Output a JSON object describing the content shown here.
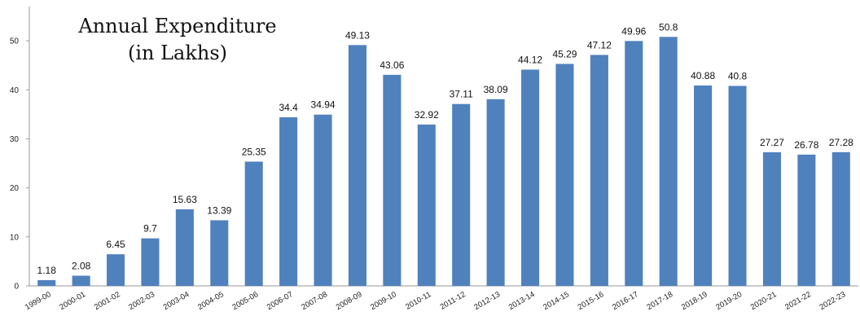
{
  "chart_data": {
    "type": "bar",
    "title_lines": [
      "Annual Expenditure",
      "(in Lakhs)"
    ],
    "xlabel": "",
    "ylabel": "",
    "ylim": [
      0,
      55
    ],
    "yticks": [
      0,
      10,
      20,
      30,
      40,
      50
    ],
    "grid": false,
    "legend": "none",
    "bar_color": "#4F81BD",
    "categories": [
      "1999-00",
      "2000-01",
      "2001-02",
      "2002-03",
      "2003-04",
      "2004-05",
      "2005-06",
      "2006-07",
      "2007-08",
      "2008-09",
      "2009-10",
      "2010-11",
      "2011-12",
      "2012-13",
      "2013-14",
      "2014-15",
      "2015-16",
      "2016-17",
      "2017-18",
      "2018-19",
      "2019-20",
      "2020-21",
      "2021-22",
      "2022-23"
    ],
    "values": [
      1.18,
      2.08,
      6.45,
      9.7,
      15.63,
      13.39,
      25.35,
      34.4,
      34.94,
      49.13,
      43.06,
      32.92,
      37.11,
      38.09,
      44.12,
      45.29,
      47.12,
      49.96,
      50.8,
      40.88,
      40.8,
      27.27,
      26.78,
      27.28
    ]
  }
}
